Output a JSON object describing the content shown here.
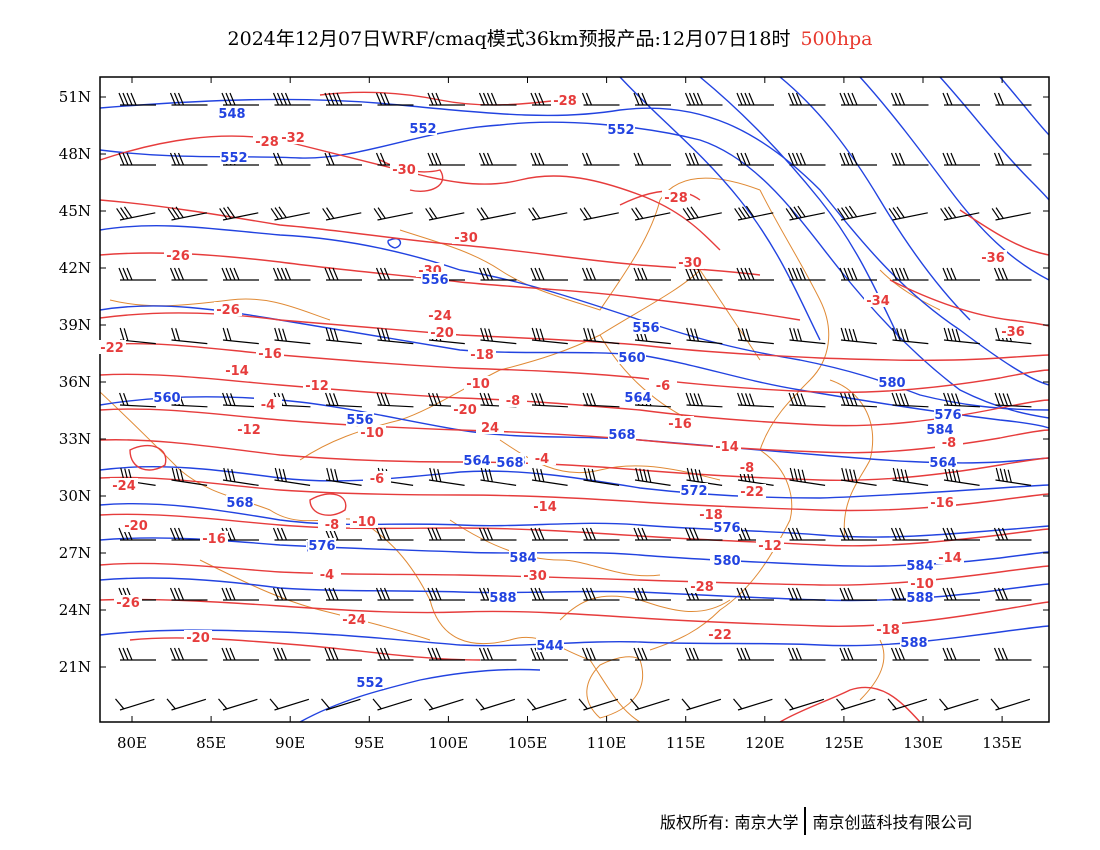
{
  "title": {
    "main": "2024年12月07日WRF/cmaq模式36km预报产品:12月07日18时",
    "level": "500hpa"
  },
  "map": {
    "lat_labels": [
      "51N",
      "48N",
      "45N",
      "42N",
      "39N",
      "36N",
      "33N",
      "30N",
      "27N",
      "24N",
      "21N"
    ],
    "lon_labels": [
      "80E",
      "85E",
      "90E",
      "95E",
      "100E",
      "105E",
      "110E",
      "115E",
      "120E",
      "125E",
      "130E",
      "135E"
    ],
    "colors": {
      "geopotential": "#2243e0",
      "temperature": "#e63c3c",
      "borders": "#e08a35",
      "wind_barbs": "#000000",
      "frame": "#000000"
    },
    "temperature_labels": [
      "-28",
      "-32",
      "-30",
      "-28",
      "-30",
      "-30",
      "-28",
      "-30",
      "-34",
      "-36",
      "-36",
      "-26",
      "-26",
      "-24",
      "-22",
      "-20",
      "-18",
      "-16",
      "-14",
      "-12",
      "-10",
      "-8",
      "-6",
      "-4",
      "24",
      "-20",
      "-16",
      "-14",
      "-12",
      "-10",
      "-8",
      "-6",
      "-4",
      "-24",
      "-22",
      "-20",
      "-18",
      "-16",
      "-14",
      "-12",
      "-10",
      "-8",
      "-6",
      "-4",
      "-30",
      "-28",
      "-26",
      "-24",
      "-22",
      "-20",
      "-18",
      "-16",
      "-14",
      "-10",
      "-8"
    ],
    "height_labels": [
      "548",
      "552",
      "552",
      "552",
      "556",
      "556",
      "560",
      "560",
      "564",
      "568",
      "568",
      "572",
      "576",
      "580",
      "584",
      "588",
      "544",
      "552",
      "556",
      "564",
      "568",
      "572",
      "576",
      "580",
      "584",
      "588",
      "588",
      "584",
      "580",
      "560",
      "564",
      "568",
      "576"
    ],
    "icons": [
      "wind-barb"
    ]
  },
  "footer": {
    "copyright": "版权所有: 南京大学",
    "company": "南京创蓝科技有限公司"
  }
}
